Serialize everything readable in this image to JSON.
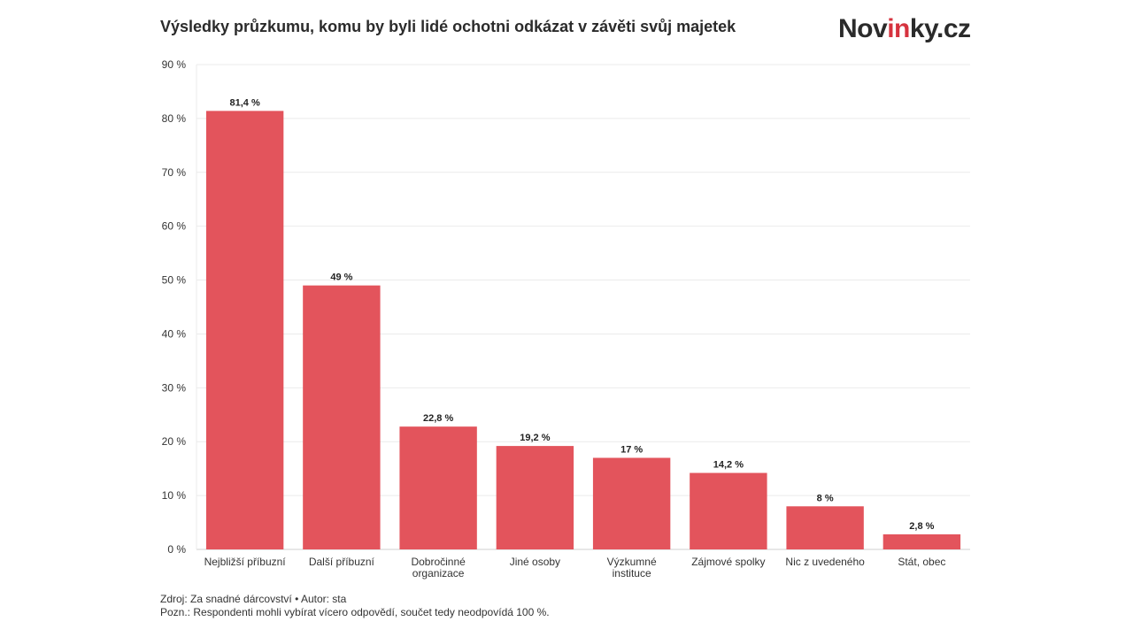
{
  "header": {
    "title": "Výsledky průzkumu, komu by byli lidé ochotni odkázat v závěti svůj majetek",
    "logo_prefix": "Nov",
    "logo_accent": "in",
    "logo_suffix": "ky.cz"
  },
  "footer": {
    "source": "Zdroj: Za snadné dárcovství • Autor: sta",
    "note": "Pozn.: Respondenti mohli vybírat vícero odpovědí, součet tedy neodpovídá 100 %."
  },
  "colors": {
    "bar": "#e3545c",
    "logo_accent": "#d6333f",
    "grid": "#ebebeb",
    "text": "#333333"
  },
  "chart_data": {
    "type": "bar",
    "categories": [
      [
        "Nejbližší příbuzní"
      ],
      [
        "Další příbuzní"
      ],
      [
        "Dobročinné",
        "organizace"
      ],
      [
        "Jiné osoby"
      ],
      [
        "Výzkumné",
        "instituce"
      ],
      [
        "Zájmové spolky"
      ],
      [
        "Nic z uvedeného"
      ],
      [
        "Stát, obec"
      ]
    ],
    "values": [
      81.4,
      49,
      22.8,
      19.2,
      17,
      14.2,
      8,
      2.8
    ],
    "value_labels": [
      "81,4 %",
      "49 %",
      "22,8 %",
      "19,2 %",
      "17 %",
      "14,2 %",
      "8 %",
      "2,8 %"
    ],
    "yticks": [
      0,
      10,
      20,
      30,
      40,
      50,
      60,
      70,
      80,
      90
    ],
    "ytick_labels": [
      "0 %",
      "10 %",
      "20 %",
      "30 %",
      "40 %",
      "50 %",
      "60 %",
      "70 %",
      "80 %",
      "90 %"
    ],
    "ylim": [
      0,
      90
    ],
    "grid": true,
    "legend": "none"
  }
}
